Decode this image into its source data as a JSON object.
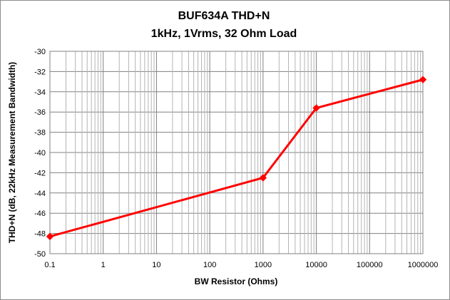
{
  "chart_data": {
    "type": "line",
    "title": "BUF634A THD+N",
    "subtitle": "1kHz, 1Vrms, 32 Ohm Load",
    "xlabel": "BW Resistor (Ohms)",
    "ylabel": "THD+N (dB, 22kHz Measurement Bandwidth)",
    "x_scale": "log",
    "xlim": [
      0.1,
      1000000
    ],
    "ylim": [
      -50,
      -30
    ],
    "x_ticks": [
      "0.1",
      "1",
      "10",
      "100",
      "1000",
      "10000",
      "100000",
      "1000000"
    ],
    "y_ticks": [
      "-30",
      "-32",
      "-34",
      "-36",
      "-38",
      "-40",
      "-42",
      "-44",
      "-46",
      "-48",
      "-50"
    ],
    "grid": true,
    "legend": "none",
    "series": [
      {
        "color": "#ff0000",
        "marker": "diamond",
        "x": [
          0.1,
          1000,
          10000,
          1000000
        ],
        "y": [
          -48.3,
          -42.5,
          -35.6,
          -32.8
        ]
      }
    ]
  }
}
